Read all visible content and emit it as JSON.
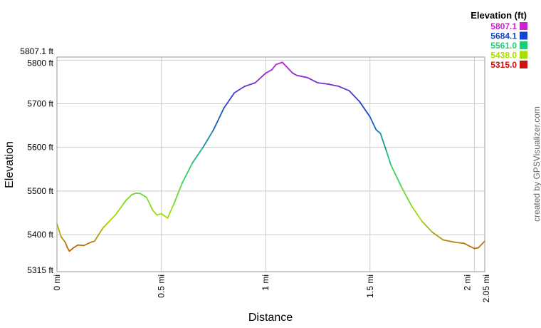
{
  "chart_data": {
    "type": "line",
    "title": "",
    "xlabel": "Distance",
    "ylabel": "Elevation",
    "xlim": [
      0,
      2.05
    ],
    "ylim": [
      5315,
      5807.1
    ],
    "grid": true,
    "x_ticks": [
      {
        "value": 0,
        "label": "0 mi"
      },
      {
        "value": 0.5,
        "label": "0.5 mi"
      },
      {
        "value": 1,
        "label": "1 mi"
      },
      {
        "value": 1.5,
        "label": "1.5 mi"
      },
      {
        "value": 2,
        "label": "2 mi"
      },
      {
        "value": 2.05,
        "label": "2.05 mi"
      }
    ],
    "y_ticks": [
      {
        "value": 5315,
        "label": "5315 ft"
      },
      {
        "value": 5400,
        "label": "5400 ft"
      },
      {
        "value": 5500,
        "label": "5500 ft"
      },
      {
        "value": 5600,
        "label": "5600 ft"
      },
      {
        "value": 5700,
        "label": "5700 ft"
      },
      {
        "value": 5800,
        "label": "5800 ft"
      },
      {
        "value": 5807.1,
        "label": "5807.1 ft"
      }
    ],
    "legend": {
      "title": "Elevation (ft)",
      "position": "top-right",
      "entries": [
        {
          "label": "5807.1",
          "color": "#cc22cc"
        },
        {
          "label": "5684.1",
          "color": "#1144cc"
        },
        {
          "label": "5561.0",
          "color": "#22cc77"
        },
        {
          "label": "5438.0",
          "color": "#aadd00"
        },
        {
          "label": "5315.0",
          "color": "#cc1111"
        }
      ]
    },
    "credit": "created by GPSVisualizer.com",
    "series": [
      {
        "x": [
          0,
          0.02,
          0.04,
          0.05,
          0.06,
          0.08,
          0.1,
          0.13,
          0.16,
          0.18,
          0.2,
          0.22,
          0.25,
          0.28,
          0.3,
          0.33,
          0.36,
          0.38,
          0.4,
          0.43,
          0.46,
          0.48,
          0.5,
          0.53,
          0.56,
          0.6,
          0.65,
          0.7,
          0.75,
          0.8,
          0.85,
          0.9,
          0.95,
          1.0,
          1.03,
          1.05,
          1.08,
          1.1,
          1.13,
          1.15,
          1.2,
          1.25,
          1.3,
          1.35,
          1.4,
          1.45,
          1.5,
          1.53,
          1.55,
          1.58,
          1.6,
          1.65,
          1.7,
          1.75,
          1.8,
          1.85,
          1.9,
          1.95,
          2.0,
          2.02,
          2.05
        ],
        "y": [
          5425,
          5395,
          5382,
          5370,
          5362,
          5370,
          5376,
          5375,
          5382,
          5385,
          5400,
          5415,
          5430,
          5445,
          5458,
          5478,
          5492,
          5495,
          5494,
          5485,
          5455,
          5445,
          5448,
          5438,
          5470,
          5518,
          5565,
          5600,
          5640,
          5690,
          5725,
          5740,
          5748,
          5770,
          5778,
          5790,
          5795,
          5785,
          5770,
          5765,
          5760,
          5748,
          5745,
          5740,
          5730,
          5705,
          5670,
          5640,
          5632,
          5590,
          5560,
          5510,
          5465,
          5430,
          5405,
          5388,
          5383,
          5380,
          5368,
          5370,
          5385
        ]
      }
    ]
  }
}
